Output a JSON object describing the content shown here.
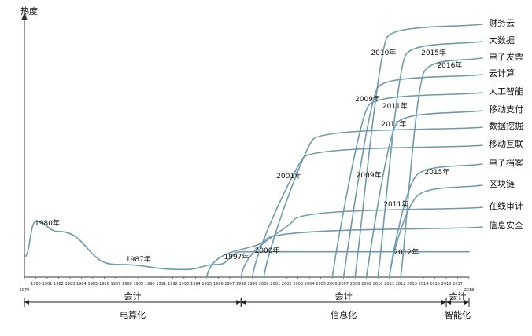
{
  "chart_data": {
    "type": "line",
    "title": "",
    "ylabel": "热度",
    "xlabel": "",
    "grid": false,
    "xlim": [
      1979,
      2018
    ],
    "ticks_x": [
      1979,
      1980,
      1981,
      1982,
      1983,
      1984,
      1985,
      1986,
      1987,
      1988,
      1989,
      1990,
      1991,
      1992,
      1993,
      1994,
      1995,
      1996,
      1997,
      1998,
      1999,
      2000,
      2001,
      2002,
      2003,
      2004,
      2005,
      2006,
      2007,
      2008,
      2009,
      2010,
      2011,
      2012,
      2013,
      2014,
      2015,
      2016,
      2017,
      2018
    ],
    "annotations": [
      {
        "text": "1980年",
        "year": 1981
      },
      {
        "text": "1987年",
        "year": 1989
      },
      {
        "text": "1997年",
        "year": 1997.6
      },
      {
        "text": "2000年",
        "year": 2000.3
      },
      {
        "text": "2001年",
        "year": 2002.2
      },
      {
        "text": "2009年",
        "year": 2009.1
      },
      {
        "text": "2009年",
        "year": 2009.2
      },
      {
        "text": "2010年",
        "year": 2010.5
      },
      {
        "text": "2011年",
        "year": 2011.5
      },
      {
        "text": "2011年",
        "year": 2011.4
      },
      {
        "text": "2011年",
        "year": 2011.6
      },
      {
        "text": "2012年",
        "year": 2012.5
      },
      {
        "text": "2015年",
        "year": 2014.9
      },
      {
        "text": "2015年",
        "year": 2015.2
      },
      {
        "text": "2016年",
        "year": 2016.3
      }
    ],
    "series": [
      {
        "name": "财务云",
        "start_year": 2008
      },
      {
        "name": "大数据",
        "start_year": 2010
      },
      {
        "name": "电子发票",
        "start_year": 2012
      },
      {
        "name": "云计算",
        "start_year": 2007
      },
      {
        "name": "人工智能",
        "start_year": 2006
      },
      {
        "name": "移动支付",
        "start_year": 2009
      },
      {
        "name": "数据挖掘",
        "start_year": 2000
      },
      {
        "name": "移动互联",
        "start_year": 1999
      },
      {
        "name": "电子档案",
        "start_year": 2011
      },
      {
        "name": "区块链",
        "start_year": 2011
      },
      {
        "name": "在线审计",
        "start_year": 1998
      },
      {
        "name": "信息安全",
        "start_year": 1995
      }
    ],
    "baseline_curve": {
      "description_points": [
        [
          1979,
          0.08
        ],
        [
          1980,
          0.22
        ],
        [
          1982,
          0.18
        ],
        [
          1987,
          0.05
        ],
        [
          1993,
          0.03
        ],
        [
          1996,
          0.05
        ],
        [
          1998,
          0.1
        ],
        [
          2018,
          0.1
        ]
      ]
    },
    "eras": [
      {
        "line1": "会计",
        "line2": "电算化",
        "from": 1979,
        "to": 1998
      },
      {
        "line1": "会计",
        "line2": "信息化",
        "from": 1998,
        "to": 2016
      },
      {
        "line1": "会计",
        "line2": "智能化",
        "from": 2016,
        "to": 2018
      }
    ]
  }
}
